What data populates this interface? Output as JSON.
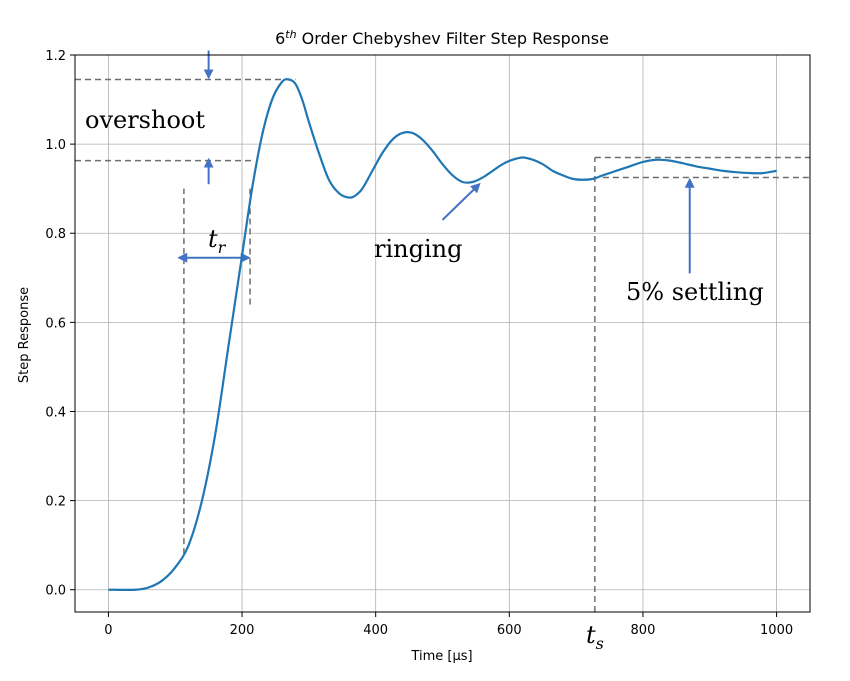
{
  "chart_data": {
    "type": "line",
    "title_base": "6",
    "title_sup": "th",
    "title_rest": " Order Chebyshev Filter Step Response",
    "xlabel": "Time [μs]",
    "ylabel": "Step Response",
    "xlim": [
      -50,
      1050
    ],
    "ylim": [
      -0.05,
      1.2
    ],
    "xticks": [
      0,
      200,
      400,
      600,
      800,
      1000
    ],
    "yticks": [
      0.0,
      0.2,
      0.4,
      0.6,
      0.8,
      1.0,
      1.2
    ],
    "xtick_labels": [
      "0",
      "200",
      "400",
      "600",
      "800",
      "1000"
    ],
    "ytick_labels": [
      "0.0",
      "0.2",
      "0.4",
      "0.6",
      "0.8",
      "1.0",
      "1.2"
    ],
    "grid": true,
    "series": [
      {
        "color": "#1f77b4",
        "x": [
          0,
          40,
          60,
          80,
          100,
          120,
          140,
          160,
          180,
          200,
          215,
          230,
          245,
          260,
          270,
          280,
          290,
          300,
          315,
          330,
          345,
          360,
          370,
          380,
          395,
          410,
          425,
          440,
          455,
          470,
          485,
          500,
          515,
          530,
          545,
          560,
          575,
          590,
          605,
          620,
          635,
          650,
          665,
          680,
          695,
          710,
          725,
          740,
          760,
          780,
          800,
          820,
          840,
          860,
          880,
          900,
          920,
          940,
          960,
          980,
          1000
        ],
        "y": [
          0.0,
          0.0,
          0.005,
          0.02,
          0.05,
          0.1,
          0.2,
          0.35,
          0.55,
          0.75,
          0.9,
          1.02,
          1.1,
          1.14,
          1.145,
          1.135,
          1.1,
          1.05,
          0.98,
          0.92,
          0.89,
          0.88,
          0.885,
          0.9,
          0.94,
          0.98,
          1.01,
          1.025,
          1.025,
          1.01,
          0.985,
          0.955,
          0.93,
          0.915,
          0.915,
          0.925,
          0.94,
          0.955,
          0.965,
          0.97,
          0.965,
          0.955,
          0.94,
          0.93,
          0.922,
          0.92,
          0.922,
          0.93,
          0.94,
          0.95,
          0.96,
          0.965,
          0.963,
          0.957,
          0.95,
          0.945,
          0.94,
          0.937,
          0.935,
          0.935,
          0.94
        ]
      }
    ],
    "annotations": {
      "overshoot": "overshoot",
      "ringing": "ringing",
      "settling": "5% settling",
      "rise_time_base": "t",
      "rise_time_sub": "r",
      "settling_time_base": "t",
      "settling_time_sub": "s"
    },
    "colors": {
      "line": "#1f77b4",
      "arrow": "#4472c4",
      "dashed": "#6e6e6e",
      "grid": "#b0b0b0"
    }
  }
}
